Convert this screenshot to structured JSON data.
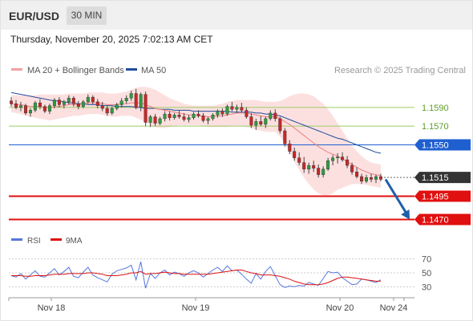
{
  "header": {
    "pair": "EUR/USD",
    "timeframe": "30 MIN"
  },
  "timestamp": "Thursday, November 20, 2025 7:02:13 AM CET",
  "legend": {
    "ma_bb_label": "MA 20 + Bollinger Bands",
    "ma50_label": "MA 50",
    "ma_bb_color": "#f4a0a0",
    "ma50_color": "#1f4e9c"
  },
  "watermark": "Research © 2025 Trading Central",
  "rsi_legend": {
    "rsi_label": "RSI",
    "ma_label": "9MA",
    "rsi_color": "#5577dd",
    "ma_color": "#dd1111"
  },
  "chart_data": {
    "type": "candlestick",
    "title": "EUR/USD 30 MIN",
    "x_labels": [
      "Nov 18",
      "Nov 19",
      "Nov 20",
      "Nov 24"
    ],
    "y_range": [
      1.1455,
      1.162
    ],
    "levels": [
      {
        "label": "1.1590",
        "value": 1.159,
        "kind": "resistance",
        "color": "#9ccc65",
        "text_color": "#5c9e2a"
      },
      {
        "label": "1.1570",
        "value": 1.157,
        "kind": "resistance",
        "color": "#9ccc65",
        "text_color": "#5c9e2a"
      },
      {
        "label": "1.1550",
        "value": 1.155,
        "kind": "pivot",
        "color": "#1f5fd0",
        "text_color": "#ffffff"
      },
      {
        "label": "1.1515",
        "value": 1.1515,
        "kind": "last price",
        "color": "#333333",
        "text_color": "#ffffff"
      },
      {
        "label": "1.1495",
        "value": 1.1495,
        "kind": "support",
        "color": "#e01010",
        "text_color": "#ffffff"
      },
      {
        "label": "1.1470",
        "value": 1.147,
        "kind": "support",
        "color": "#e01010",
        "text_color": "#ffffff"
      }
    ],
    "forecast_arrow": {
      "from": 1.1513,
      "to": 1.147,
      "color": "#1f5fa8"
    },
    "candles": [
      [
        1.1597,
        1.1601,
        1.1591,
        1.1594
      ],
      [
        1.1594,
        1.1598,
        1.1588,
        1.159
      ],
      [
        1.159,
        1.1596,
        1.1586,
        1.1592
      ],
      [
        1.1592,
        1.1594,
        1.1582,
        1.1584
      ],
      [
        1.1584,
        1.1589,
        1.158,
        1.1587
      ],
      [
        1.1587,
        1.1597,
        1.1585,
        1.1595
      ],
      [
        1.1595,
        1.1599,
        1.1588,
        1.1591
      ],
      [
        1.1591,
        1.1593,
        1.1584,
        1.1586
      ],
      [
        1.1586,
        1.1594,
        1.1583,
        1.1592
      ],
      [
        1.1592,
        1.16,
        1.1589,
        1.1598
      ],
      [
        1.1598,
        1.1601,
        1.159,
        1.1593
      ],
      [
        1.1593,
        1.1598,
        1.1589,
        1.1596
      ],
      [
        1.1596,
        1.1603,
        1.1593,
        1.16
      ],
      [
        1.16,
        1.1602,
        1.1591,
        1.1594
      ],
      [
        1.1594,
        1.1597,
        1.1588,
        1.1591
      ],
      [
        1.1591,
        1.1598,
        1.1589,
        1.1596
      ],
      [
        1.1596,
        1.1604,
        1.1594,
        1.1601
      ],
      [
        1.1601,
        1.1603,
        1.1593,
        1.1596
      ],
      [
        1.1596,
        1.1599,
        1.1589,
        1.1592
      ],
      [
        1.1592,
        1.1596,
        1.1586,
        1.1589
      ],
      [
        1.1589,
        1.1592,
        1.1581,
        1.1584
      ],
      [
        1.1584,
        1.1591,
        1.1582,
        1.1589
      ],
      [
        1.1589,
        1.1595,
        1.1587,
        1.1593
      ],
      [
        1.1593,
        1.16,
        1.159,
        1.1597
      ],
      [
        1.1597,
        1.1603,
        1.1594,
        1.16
      ],
      [
        1.16,
        1.1608,
        1.1597,
        1.1605
      ],
      [
        1.1605,
        1.161,
        1.1588,
        1.159
      ],
      [
        1.159,
        1.1606,
        1.1586,
        1.1604
      ],
      [
        1.1604,
        1.1607,
        1.157,
        1.1574
      ],
      [
        1.1574,
        1.1582,
        1.1569,
        1.158
      ],
      [
        1.158,
        1.1583,
        1.157,
        1.1573
      ],
      [
        1.1573,
        1.158,
        1.1571,
        1.1578
      ],
      [
        1.1578,
        1.1586,
        1.1575,
        1.1583
      ],
      [
        1.1583,
        1.1586,
        1.1576,
        1.1579
      ],
      [
        1.1579,
        1.1584,
        1.1577,
        1.1582
      ],
      [
        1.1582,
        1.1587,
        1.1578,
        1.158
      ],
      [
        1.158,
        1.1584,
        1.1575,
        1.1577
      ],
      [
        1.1577,
        1.1582,
        1.1574,
        1.1579
      ],
      [
        1.1579,
        1.1585,
        1.1577,
        1.1583
      ],
      [
        1.1583,
        1.1587,
        1.1579,
        1.1581
      ],
      [
        1.1581,
        1.1584,
        1.1574,
        1.1576
      ],
      [
        1.1576,
        1.158,
        1.1572,
        1.1578
      ],
      [
        1.1578,
        1.1584,
        1.1576,
        1.1582
      ],
      [
        1.1582,
        1.1588,
        1.1579,
        1.1586
      ],
      [
        1.1586,
        1.1589,
        1.158,
        1.1583
      ],
      [
        1.1583,
        1.1593,
        1.1581,
        1.1591
      ],
      [
        1.1591,
        1.1596,
        1.1586,
        1.1588
      ],
      [
        1.1588,
        1.1593,
        1.1584,
        1.159
      ],
      [
        1.159,
        1.1595,
        1.1585,
        1.1587
      ],
      [
        1.1587,
        1.159,
        1.1578,
        1.158
      ],
      [
        1.158,
        1.1584,
        1.1568,
        1.1571
      ],
      [
        1.1571,
        1.1578,
        1.1566,
        1.1575
      ],
      [
        1.1575,
        1.1581,
        1.157,
        1.1572
      ],
      [
        1.1572,
        1.158,
        1.1568,
        1.1578
      ],
      [
        1.1578,
        1.1587,
        1.1576,
        1.1584
      ],
      [
        1.1584,
        1.1588,
        1.1575,
        1.1578
      ],
      [
        1.1578,
        1.158,
        1.1562,
        1.1565
      ],
      [
        1.1565,
        1.1568,
        1.1548,
        1.1551
      ],
      [
        1.1551,
        1.1555,
        1.154,
        1.1543
      ],
      [
        1.1543,
        1.1547,
        1.1533,
        1.1536
      ],
      [
        1.1536,
        1.1542,
        1.1528,
        1.1531
      ],
      [
        1.1531,
        1.1537,
        1.152,
        1.1524
      ],
      [
        1.1524,
        1.1531,
        1.1519,
        1.1528
      ],
      [
        1.1528,
        1.1533,
        1.1521,
        1.1525
      ],
      [
        1.1525,
        1.1529,
        1.1515,
        1.1518
      ],
      [
        1.1518,
        1.1527,
        1.1515,
        1.1524
      ],
      [
        1.1524,
        1.1536,
        1.1522,
        1.1533
      ],
      [
        1.1533,
        1.1539,
        1.1528,
        1.1536
      ],
      [
        1.1536,
        1.1541,
        1.153,
        1.1537
      ],
      [
        1.1537,
        1.1542,
        1.1532,
        1.1534
      ],
      [
        1.1534,
        1.1538,
        1.1525,
        1.1528
      ],
      [
        1.1528,
        1.1531,
        1.1518,
        1.1521
      ],
      [
        1.1521,
        1.1526,
        1.1514,
        1.1516
      ],
      [
        1.1516,
        1.1519,
        1.1508,
        1.1511
      ],
      [
        1.1511,
        1.1518,
        1.1509,
        1.1515
      ],
      [
        1.1515,
        1.1519,
        1.151,
        1.1513
      ],
      [
        1.1513,
        1.1518,
        1.1509,
        1.1516
      ],
      [
        1.1516,
        1.1519,
        1.1511,
        1.1513
      ]
    ],
    "ma20": [
      1.1594,
      1.1593,
      1.1593,
      1.1592,
      1.1591,
      1.1591,
      1.1591,
      1.159,
      1.159,
      1.1591,
      1.1591,
      1.1592,
      1.1593,
      1.1593,
      1.1593,
      1.1594,
      1.1595,
      1.1595,
      1.1595,
      1.1594,
      1.1593,
      1.1593,
      1.1593,
      1.1594,
      1.1594,
      1.1595,
      1.1595,
      1.1595,
      1.1593,
      1.1591,
      1.1589,
      1.1588,
      1.1587,
      1.1586,
      1.1585,
      1.1584,
      1.1583,
      1.1582,
      1.1582,
      1.1581,
      1.1581,
      1.158,
      1.158,
      1.1581,
      1.1581,
      1.1582,
      1.1583,
      1.1584,
      1.1584,
      1.1584,
      1.1583,
      1.1582,
      1.1581,
      1.158,
      1.158,
      1.158,
      1.1578,
      1.1575,
      1.1572,
      1.1568,
      1.1564,
      1.156,
      1.1556,
      1.1552,
      1.1548,
      1.1545,
      1.1542,
      1.154,
      1.1538,
      1.1535,
      1.1532,
      1.1529,
      1.1526,
      1.1523,
      1.1521,
      1.1519,
      1.1518,
      1.1517
    ],
    "bb_upper": [
      1.1603,
      1.1603,
      1.1603,
      1.1603,
      1.1603,
      1.1603,
      1.1604,
      1.1604,
      1.1604,
      1.1604,
      1.1604,
      1.1604,
      1.1605,
      1.1605,
      1.1605,
      1.1605,
      1.1606,
      1.1606,
      1.1606,
      1.1606,
      1.1605,
      1.1605,
      1.1605,
      1.1606,
      1.1607,
      1.1609,
      1.1611,
      1.1612,
      1.1612,
      1.1611,
      1.1609,
      1.1606,
      1.1603,
      1.16,
      1.1598,
      1.1596,
      1.1594,
      1.1593,
      1.1592,
      1.1592,
      1.1592,
      1.1592,
      1.1592,
      1.1593,
      1.1594,
      1.1596,
      1.1597,
      1.1598,
      1.1598,
      1.1598,
      1.1598,
      1.1598,
      1.1597,
      1.1596,
      1.1596,
      1.1596,
      1.1597,
      1.1599,
      1.1602,
      1.1604,
      1.1605,
      1.1605,
      1.1604,
      1.1602,
      1.1598,
      1.1594,
      1.1588,
      1.1581,
      1.1573,
      1.1565,
      1.1557,
      1.1549,
      1.1543,
      1.1538,
      1.1534,
      1.1531,
      1.153,
      1.1529
    ],
    "bb_lower": [
      1.1585,
      1.1584,
      1.1583,
      1.1581,
      1.158,
      1.1579,
      1.1578,
      1.1577,
      1.1576,
      1.1577,
      1.1578,
      1.1579,
      1.158,
      1.1581,
      1.1581,
      1.1582,
      1.1583,
      1.1583,
      1.1583,
      1.1582,
      1.1581,
      1.158,
      1.158,
      1.1581,
      1.1581,
      1.1581,
      1.1579,
      1.1577,
      1.1574,
      1.1571,
      1.1569,
      1.1568,
      1.1568,
      1.1569,
      1.157,
      1.1571,
      1.1571,
      1.1571,
      1.1571,
      1.1571,
      1.157,
      1.1569,
      1.1569,
      1.1569,
      1.1569,
      1.1569,
      1.157,
      1.157,
      1.157,
      1.1569,
      1.1568,
      1.1566,
      1.1565,
      1.1564,
      1.1564,
      1.1564,
      1.1559,
      1.1551,
      1.1542,
      1.1532,
      1.1523,
      1.1515,
      1.1508,
      1.1502,
      1.1498,
      1.1496,
      1.1496,
      1.1498,
      1.1502,
      1.1504,
      1.1506,
      1.1508,
      1.1508,
      1.1508,
      1.1507,
      1.1506,
      1.1505,
      1.1504
    ],
    "ma50": [
      1.1606,
      1.1605,
      1.1604,
      1.1603,
      1.1602,
      1.1601,
      1.16,
      1.1599,
      1.1598,
      1.1597,
      1.1597,
      1.1596,
      1.1595,
      1.1595,
      1.1594,
      1.1594,
      1.1593,
      1.1593,
      1.1593,
      1.1592,
      1.1592,
      1.1592,
      1.1591,
      1.1591,
      1.1591,
      1.1591,
      1.159,
      1.159,
      1.1589,
      1.1589,
      1.1589,
      1.1588,
      1.1588,
      1.1588,
      1.1587,
      1.1587,
      1.1587,
      1.1587,
      1.1586,
      1.1586,
      1.1586,
      1.1586,
      1.1586,
      1.1586,
      1.1586,
      1.1586,
      1.1585,
      1.1585,
      1.1585,
      1.1585,
      1.1585,
      1.1584,
      1.1584,
      1.1583,
      1.1583,
      1.1582,
      1.1581,
      1.1579,
      1.1577,
      1.1575,
      1.1573,
      1.1571,
      1.1569,
      1.1567,
      1.1565,
      1.1563,
      1.1561,
      1.1559,
      1.1557,
      1.1556,
      1.1554,
      1.1552,
      1.155,
      1.1548,
      1.1546,
      1.1544,
      1.1542,
      1.1541
    ],
    "rsi": {
      "y_ticks": [
        "70",
        "50",
        "30"
      ],
      "y_range": [
        20,
        80
      ],
      "rsi": [
        46,
        44,
        49,
        41,
        47,
        53,
        45,
        44,
        50,
        56,
        47,
        52,
        58,
        45,
        43,
        51,
        58,
        47,
        43,
        40,
        37,
        48,
        53,
        55,
        57,
        61,
        40,
        66,
        28,
        49,
        42,
        50,
        54,
        47,
        51,
        49,
        45,
        50,
        53,
        50,
        44,
        49,
        54,
        58,
        52,
        60,
        53,
        54,
        48,
        41,
        35,
        49,
        41,
        52,
        59,
        46,
        33,
        29,
        31,
        30,
        32,
        31,
        36,
        34,
        32,
        42,
        52,
        50,
        51,
        43,
        38,
        33,
        34,
        41,
        40,
        38,
        36,
        40
      ],
      "ma9": [
        46,
        46,
        46,
        45,
        45,
        46,
        46,
        46,
        47,
        48,
        48,
        48,
        49,
        49,
        49,
        49,
        50,
        50,
        49,
        48,
        46,
        46,
        46,
        47,
        48,
        50,
        50,
        52,
        48,
        49,
        49,
        50,
        51,
        50,
        49,
        49,
        48,
        48,
        48,
        48,
        48,
        48,
        49,
        50,
        51,
        52,
        53,
        54,
        54,
        52,
        50,
        49,
        47,
        47,
        47,
        46,
        45,
        43,
        41,
        38,
        36,
        34,
        33,
        33,
        33,
        34,
        36,
        39,
        42,
        44,
        44,
        43,
        42,
        41,
        40,
        39,
        38,
        38
      ]
    }
  }
}
